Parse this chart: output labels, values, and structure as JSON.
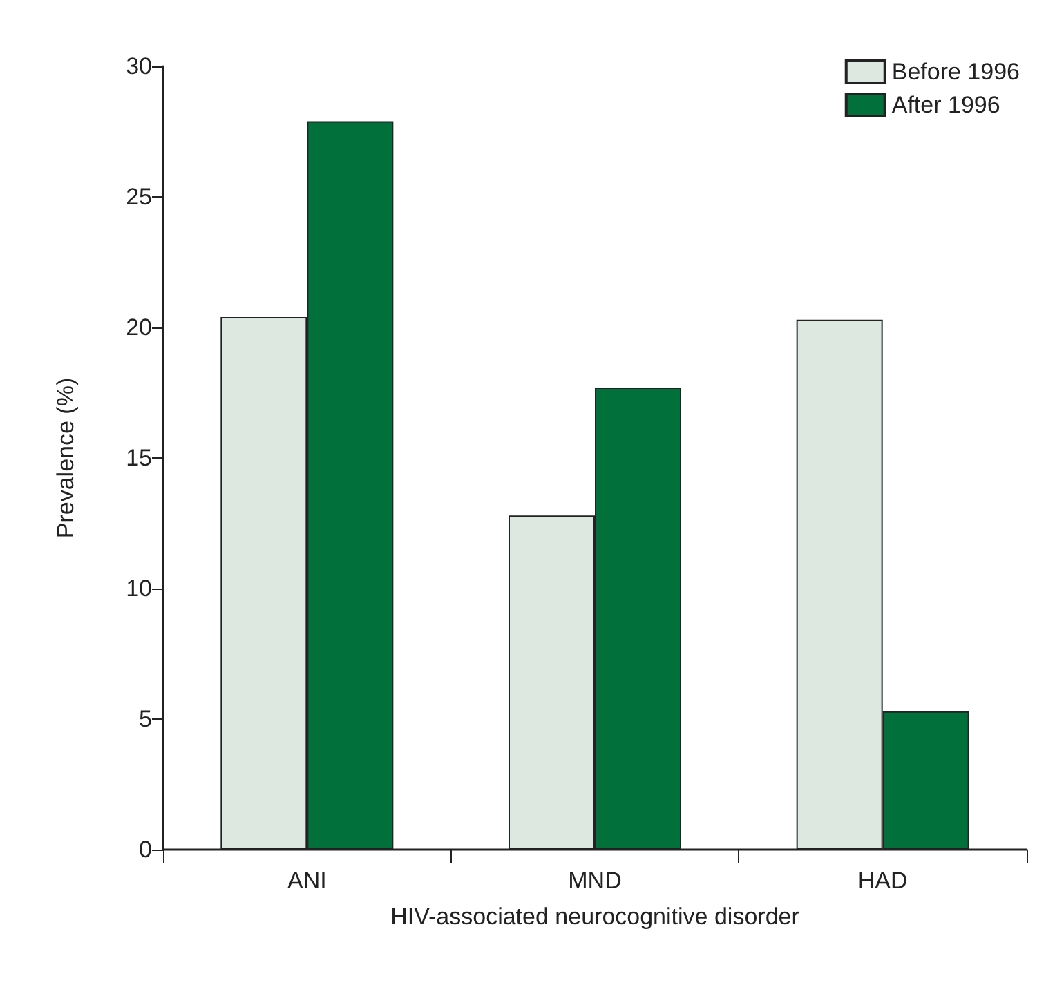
{
  "chart_data": {
    "type": "bar",
    "xlabel": "HIV-associated neurocognitive disorder",
    "ylabel": "Prevalence (%)",
    "categories": [
      "ANI",
      "MND",
      "HAD"
    ],
    "series": [
      {
        "name": "Before 1996",
        "color": "#dce8e0",
        "values": [
          20.4,
          12.8,
          20.3
        ]
      },
      {
        "name": "After 1996",
        "color": "#02703a",
        "values": [
          27.9,
          17.7,
          5.3
        ]
      }
    ],
    "ylim": [
      0,
      30
    ],
    "yticks": [
      0,
      5,
      10,
      15,
      20,
      25,
      30
    ],
    "grid": false,
    "legend": "top right"
  }
}
